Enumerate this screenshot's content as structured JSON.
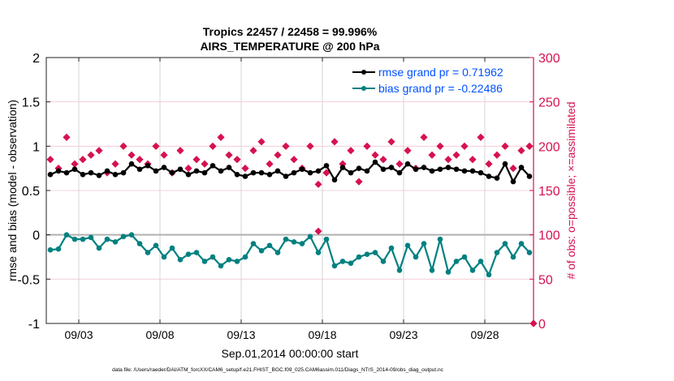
{
  "chart_data": {
    "type": "line",
    "title": "Tropics 22457 / 22458 = 99.996%",
    "subtitle": "AIRS_TEMPERATURE @ 200 hPa",
    "xlabel": "Sep.01,2014 00:00:00 start",
    "ylabel": "rmse and bias (model - observation)",
    "y2label": "# of obs: o=possible; ×=assimilated",
    "footnote": "data file: /Users/raeder/DAI/ATM_forcXX/CAM6_setup/f.e21.FHIST_BGC.f09_025.CAM6assim.011/Diags_NTrS_2014-09/obs_diag_output.nc",
    "x_start": "2014-09-01T06:00",
    "x_step_hours": 12,
    "xlim": [
      "2014-09-01",
      "2014-10-01"
    ],
    "xticks": [
      "09/03",
      "09/08",
      "09/13",
      "09/18",
      "09/23",
      "09/28"
    ],
    "ylim": [
      -1,
      2
    ],
    "yticks": [
      "-1",
      "-0.5",
      "0",
      "0.5",
      "1",
      "1.5",
      "2"
    ],
    "y2lim": [
      0,
      300
    ],
    "y2ticks": [
      "0",
      "50",
      "100",
      "150",
      "200",
      "250",
      "300"
    ],
    "grid": true,
    "legend_position": "top-right",
    "colors": {
      "rmse": "#000000",
      "bias": "#008080",
      "obs": "#d6124f",
      "axis2": "#d6124f",
      "legend_text": "#0050ff"
    },
    "series": [
      {
        "name": "rmse grand pr = 0.71962",
        "axis": "left",
        "values": [
          0.68,
          0.72,
          0.7,
          0.74,
          0.68,
          0.7,
          0.67,
          0.72,
          0.68,
          0.7,
          0.8,
          0.74,
          0.78,
          0.72,
          0.76,
          0.7,
          0.74,
          0.68,
          0.72,
          0.7,
          0.78,
          0.72,
          0.76,
          0.68,
          0.66,
          0.7,
          0.7,
          0.68,
          0.72,
          0.66,
          0.7,
          0.74,
          0.7,
          0.72,
          0.78,
          0.62,
          0.76,
          0.7,
          0.75,
          0.72,
          0.82,
          0.74,
          0.76,
          0.7,
          0.8,
          0.74,
          0.76,
          0.72,
          0.74,
          0.76,
          0.74,
          0.72,
          0.72,
          0.7,
          0.66,
          0.64,
          0.8,
          0.6,
          0.76,
          0.66
        ]
      },
      {
        "name": "bias grand pr = -0.22486",
        "axis": "left",
        "values": [
          -0.17,
          -0.16,
          0.0,
          -0.05,
          -0.05,
          -0.03,
          -0.15,
          -0.05,
          -0.08,
          -0.02,
          0.0,
          -0.1,
          -0.2,
          -0.12,
          -0.25,
          -0.15,
          -0.28,
          -0.22,
          -0.2,
          -0.3,
          -0.25,
          -0.35,
          -0.28,
          -0.3,
          -0.25,
          -0.1,
          -0.18,
          -0.12,
          -0.2,
          -0.05,
          -0.08,
          -0.1,
          -0.02,
          -0.2,
          -0.05,
          -0.35,
          -0.3,
          -0.32,
          -0.25,
          -0.22,
          -0.2,
          -0.3,
          -0.15,
          -0.4,
          -0.12,
          -0.25,
          -0.1,
          -0.4,
          -0.05,
          -0.42,
          -0.3,
          -0.25,
          -0.4,
          -0.3,
          -0.45,
          -0.2,
          -0.1,
          -0.25,
          -0.1,
          -0.2
        ]
      },
      {
        "name": "possible",
        "axis": "right",
        "values": [
          185,
          175,
          210,
          180,
          185,
          190,
          195,
          170,
          180,
          200,
          190,
          185,
          180,
          200,
          190,
          170,
          195,
          175,
          185,
          180,
          200,
          210,
          190,
          185,
          175,
          195,
          205,
          180,
          190,
          200,
          185,
          175,
          200,
          157,
          170,
          205,
          180,
          195,
          160,
          200,
          190,
          185,
          205,
          180,
          195,
          175,
          210,
          190,
          200,
          185,
          190,
          200,
          185,
          210,
          180,
          190,
          200,
          175,
          195,
          200,
          0
        ]
      },
      {
        "name": "assimilated",
        "axis": "right",
        "values": [
          185,
          175,
          210,
          180,
          185,
          190,
          195,
          170,
          180,
          200,
          190,
          185,
          180,
          200,
          190,
          170,
          195,
          175,
          185,
          180,
          200,
          210,
          190,
          185,
          175,
          195,
          205,
          180,
          190,
          200,
          185,
          175,
          200,
          104,
          170,
          205,
          180,
          195,
          160,
          200,
          190,
          185,
          205,
          180,
          195,
          175,
          210,
          190,
          200,
          185,
          190,
          200,
          185,
          210,
          180,
          190,
          200,
          175,
          195,
          200,
          0
        ]
      }
    ]
  }
}
